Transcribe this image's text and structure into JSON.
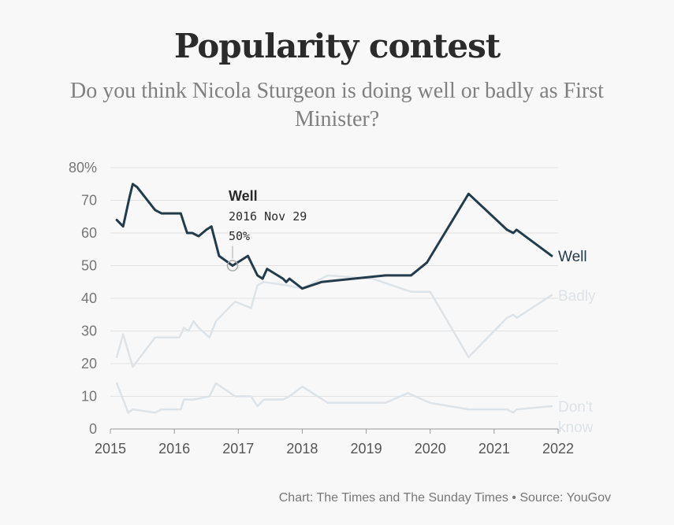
{
  "header": {
    "title": "Popularity contest",
    "subtitle": "Do you think Nicola Sturgeon is doing well or badly as First Minister?"
  },
  "footer": {
    "credit": "Chart: The Times and The Sunday Times • Source: YouGov"
  },
  "colors": {
    "well": "#243b4a",
    "badly": "#dde3e7",
    "dont_know": "#dde3e7",
    "grid": "#e2e2e2",
    "axis": "#999999"
  },
  "annotation": {
    "series": "Well",
    "date": "2016 Nov 29",
    "value_label": "50%",
    "x": 2016.91,
    "y": 50
  },
  "chart_data": {
    "type": "line",
    "x_unit": "year",
    "xlim": [
      2015,
      2022
    ],
    "ylim": [
      0,
      80
    ],
    "x_ticks": [
      2015,
      2016,
      2017,
      2018,
      2019,
      2020,
      2021,
      2022
    ],
    "y_ticks": [
      {
        "value": 0,
        "label": "0"
      },
      {
        "value": 10,
        "label": "10"
      },
      {
        "value": 20,
        "label": "20"
      },
      {
        "value": 30,
        "label": "30"
      },
      {
        "value": 40,
        "label": "40"
      },
      {
        "value": 50,
        "label": "50"
      },
      {
        "value": 60,
        "label": "60"
      },
      {
        "value": 70,
        "label": "70"
      },
      {
        "value": 80,
        "label": "80%"
      }
    ],
    "grid": true,
    "legend": "direct labels at line ends",
    "series": [
      {
        "name": "Well",
        "end_label": "Well",
        "color": "#243b4a",
        "x": [
          2015.1,
          2015.2,
          2015.3,
          2015.35,
          2015.42,
          2015.7,
          2015.8,
          2016.1,
          2016.15,
          2016.2,
          2016.28,
          2016.38,
          2016.5,
          2016.58,
          2016.7,
          2016.91,
          2017.15,
          2017.3,
          2017.38,
          2017.45,
          2017.7,
          2017.75,
          2017.8,
          2018.0,
          2018.3,
          2019.3,
          2019.7,
          2019.95,
          2020.6,
          2021.2,
          2021.3,
          2021.35,
          2021.9
        ],
        "y": [
          64,
          62,
          71,
          75,
          74,
          67,
          66,
          66,
          63,
          60,
          60,
          59,
          61,
          62,
          53,
          50,
          53,
          47,
          46,
          49,
          46,
          45,
          46,
          43,
          45,
          47,
          47,
          51,
          72,
          61,
          60,
          61,
          53
        ]
      },
      {
        "name": "Badly",
        "end_label": "Badly",
        "color": "#dde3e7",
        "x": [
          2015.1,
          2015.2,
          2015.35,
          2015.7,
          2016.0,
          2016.08,
          2016.15,
          2016.22,
          2016.3,
          2016.38,
          2016.55,
          2016.65,
          2016.95,
          2017.2,
          2017.3,
          2017.4,
          2017.75,
          2018.0,
          2018.4,
          2019.1,
          2019.7,
          2020.0,
          2020.6,
          2021.2,
          2021.3,
          2021.35,
          2021.9
        ],
        "y": [
          22,
          29,
          19,
          28,
          28,
          28,
          31,
          30,
          33,
          31,
          28,
          33,
          39,
          37,
          44,
          45,
          44,
          43,
          47,
          46,
          42,
          42,
          22,
          34,
          35,
          34,
          41
        ]
      },
      {
        "name": "Don't know",
        "end_label": "Don't know",
        "color": "#dde3e7",
        "x": [
          2015.1,
          2015.28,
          2015.35,
          2015.7,
          2015.8,
          2016.1,
          2016.15,
          2016.3,
          2016.55,
          2016.65,
          2016.95,
          2017.2,
          2017.3,
          2017.4,
          2017.7,
          2017.8,
          2018.0,
          2018.4,
          2019.3,
          2019.65,
          2020.0,
          2020.6,
          2021.2,
          2021.3,
          2021.35,
          2021.9
        ],
        "y": [
          14,
          5,
          6,
          5,
          6,
          6,
          9,
          9,
          10,
          14,
          10,
          10,
          7,
          9,
          9,
          10,
          13,
          8,
          8,
          11,
          8,
          6,
          6,
          5,
          6,
          7
        ]
      }
    ]
  }
}
